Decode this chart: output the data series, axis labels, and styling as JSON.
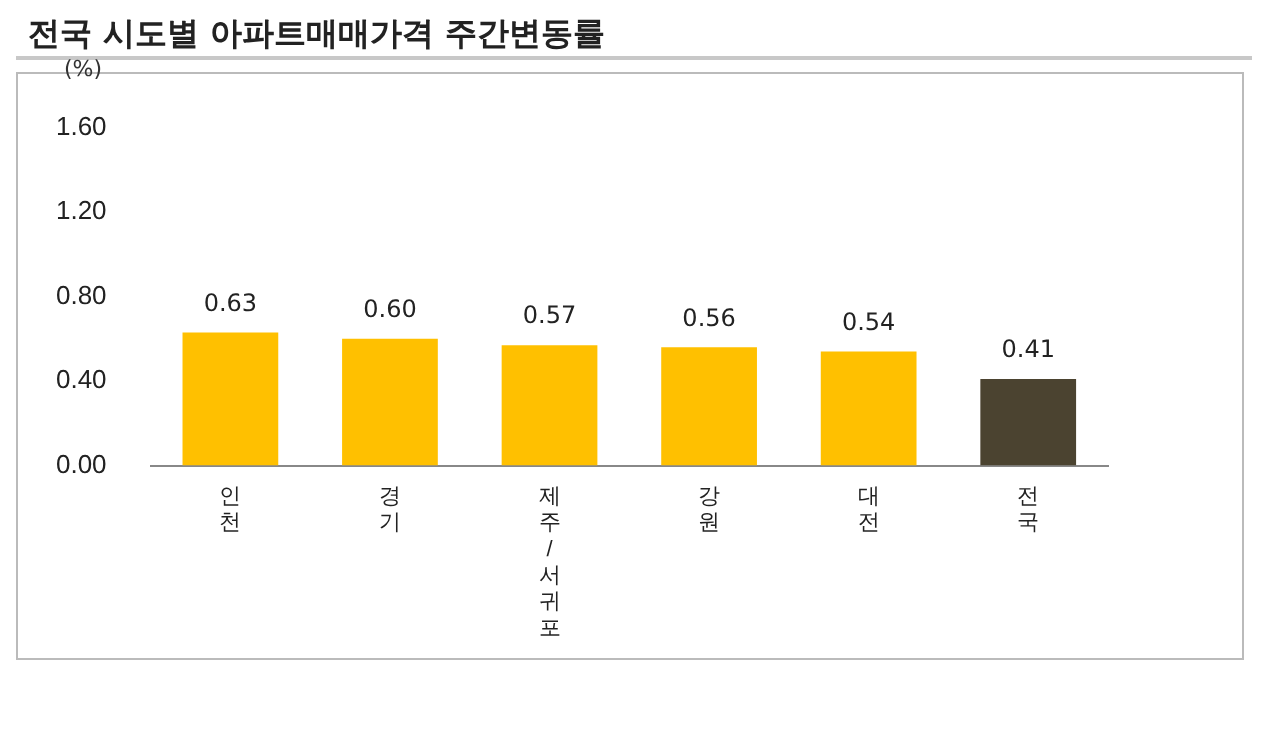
{
  "chart_data": {
    "type": "bar",
    "title": "전국 시도별 아파트매매가격 주간변동률",
    "ylabel": "(%)",
    "categories": [
      "인천",
      "경기",
      "제주/서귀포",
      "강원",
      "대전",
      "전국"
    ],
    "values": [
      0.63,
      0.6,
      0.57,
      0.56,
      0.54,
      0.41
    ],
    "colors": [
      "#ffc000",
      "#ffc000",
      "#ffc000",
      "#ffc000",
      "#ffc000",
      "#4b4330"
    ],
    "value_labels": [
      "0.63",
      "0.60",
      "0.57",
      "0.56",
      "0.54",
      "0.41"
    ],
    "ylim": [
      0,
      1.6
    ],
    "yticks": [
      {
        "value": 0,
        "label": "0.00"
      },
      {
        "value": 0.4,
        "label": "0.40"
      },
      {
        "value": 0.8,
        "label": "0.80"
      },
      {
        "value": 1.2,
        "label": "1.20"
      },
      {
        "value": 1.6,
        "label": "1.60"
      }
    ],
    "grid": false,
    "legend": false
  }
}
